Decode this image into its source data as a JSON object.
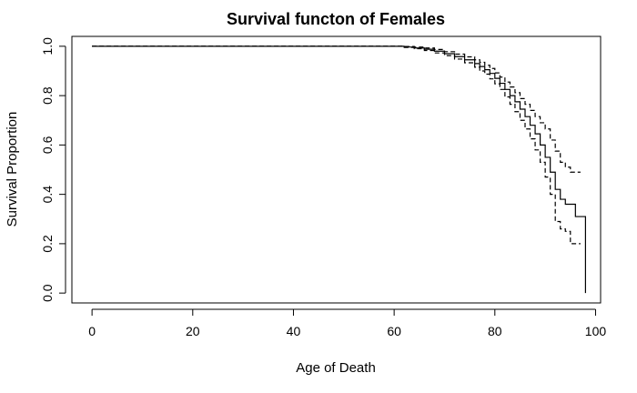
{
  "chart_data": {
    "type": "line",
    "title": "Survival functon of Females",
    "xlabel": "Age of Death",
    "ylabel": "Survival Proportion",
    "xlim": [
      -4,
      101
    ],
    "ylim": [
      -0.04,
      1.04
    ],
    "x_ticks": [
      0,
      20,
      40,
      60,
      80,
      100
    ],
    "y_ticks": [
      0.0,
      0.2,
      0.4,
      0.6,
      0.8,
      1.0
    ],
    "x_tick_labels": [
      "0",
      "20",
      "40",
      "60",
      "80",
      "100"
    ],
    "y_tick_labels": [
      "0.0",
      "0.2",
      "0.4",
      "0.6",
      "0.8",
      "1.0"
    ],
    "grid": false,
    "legend": "none",
    "series": [
      {
        "style": "solid",
        "step": true,
        "x": [
          0,
          62,
          64,
          66,
          68,
          70,
          72,
          74,
          76,
          77,
          78,
          79,
          80,
          81,
          82,
          83,
          84,
          85,
          86,
          87,
          88,
          89,
          90,
          91,
          92,
          93,
          94,
          96,
          98
        ],
        "y": [
          1.0,
          0.997,
          0.993,
          0.988,
          0.98,
          0.97,
          0.958,
          0.945,
          0.93,
          0.918,
          0.905,
          0.89,
          0.87,
          0.85,
          0.825,
          0.8,
          0.775,
          0.745,
          0.715,
          0.68,
          0.645,
          0.6,
          0.55,
          0.49,
          0.42,
          0.38,
          0.36,
          0.31,
          0.0
        ]
      },
      {
        "style": "dashed",
        "step": true,
        "x": [
          0,
          62,
          64,
          66,
          68,
          70,
          72,
          74,
          76,
          77,
          78,
          79,
          80,
          81,
          82,
          83,
          84,
          85,
          86,
          87,
          88,
          89,
          90,
          91,
          92,
          93,
          94,
          95,
          97
        ],
        "y": [
          1.0,
          0.999,
          0.997,
          0.993,
          0.987,
          0.978,
          0.968,
          0.957,
          0.945,
          0.935,
          0.923,
          0.91,
          0.892,
          0.875,
          0.855,
          0.835,
          0.812,
          0.788,
          0.765,
          0.74,
          0.715,
          0.69,
          0.665,
          0.62,
          0.575,
          0.53,
          0.51,
          0.49,
          0.49
        ]
      },
      {
        "style": "dashed",
        "step": true,
        "x": [
          0,
          62,
          64,
          66,
          68,
          70,
          72,
          74,
          76,
          77,
          78,
          79,
          80,
          81,
          82,
          83,
          84,
          85,
          86,
          87,
          88,
          89,
          90,
          91,
          92,
          93,
          94,
          95,
          96,
          97
        ],
        "y": [
          1.0,
          0.995,
          0.99,
          0.983,
          0.973,
          0.962,
          0.948,
          0.933,
          0.915,
          0.9,
          0.887,
          0.868,
          0.848,
          0.825,
          0.795,
          0.765,
          0.735,
          0.7,
          0.665,
          0.625,
          0.58,
          0.53,
          0.47,
          0.4,
          0.29,
          0.26,
          0.25,
          0.2,
          0.2,
          0.2
        ]
      }
    ]
  }
}
